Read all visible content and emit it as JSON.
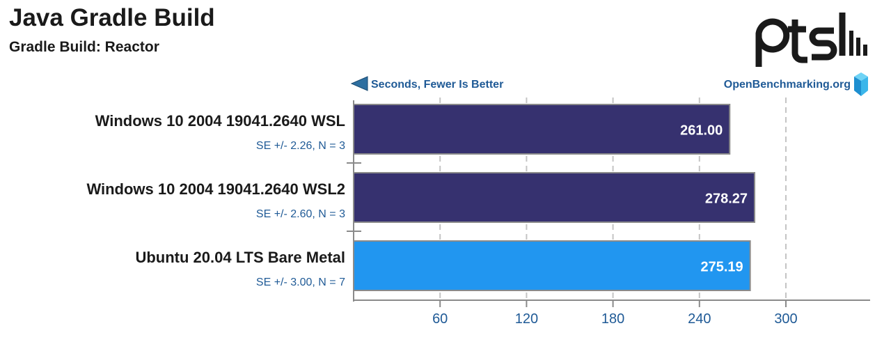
{
  "title": "Java Gradle Build",
  "subtitle": "Gradle Build: Reactor",
  "direction_label": "Seconds, Fewer Is Better",
  "site_label": "OpenBenchmarking.org",
  "logo_text": "ptsh",
  "chart_data": {
    "type": "bar",
    "orientation": "horizontal",
    "title": "Java Gradle Build",
    "subtitle": "Gradle Build: Reactor",
    "xlabel": "Seconds, Fewer Is Better",
    "xlim": [
      0,
      345
    ],
    "xticks": [
      60,
      120,
      180,
      240,
      300
    ],
    "grid": true,
    "categories": [
      "Windows 10 2004 19041.2640 WSL",
      "Windows 10 2004 19041.2640 WSL2",
      "Ubuntu 20.04 LTS Bare Metal"
    ],
    "values": [
      261.0,
      278.27,
      275.19
    ],
    "value_labels": [
      "261.00",
      "278.27",
      "275.19"
    ],
    "errors": [
      "SE +/- 2.26, N = 3",
      "SE +/- 2.60, N = 3",
      "SE +/- 3.00, N = 7"
    ],
    "colors": [
      "#36316f",
      "#36316f",
      "#2196f0"
    ]
  }
}
